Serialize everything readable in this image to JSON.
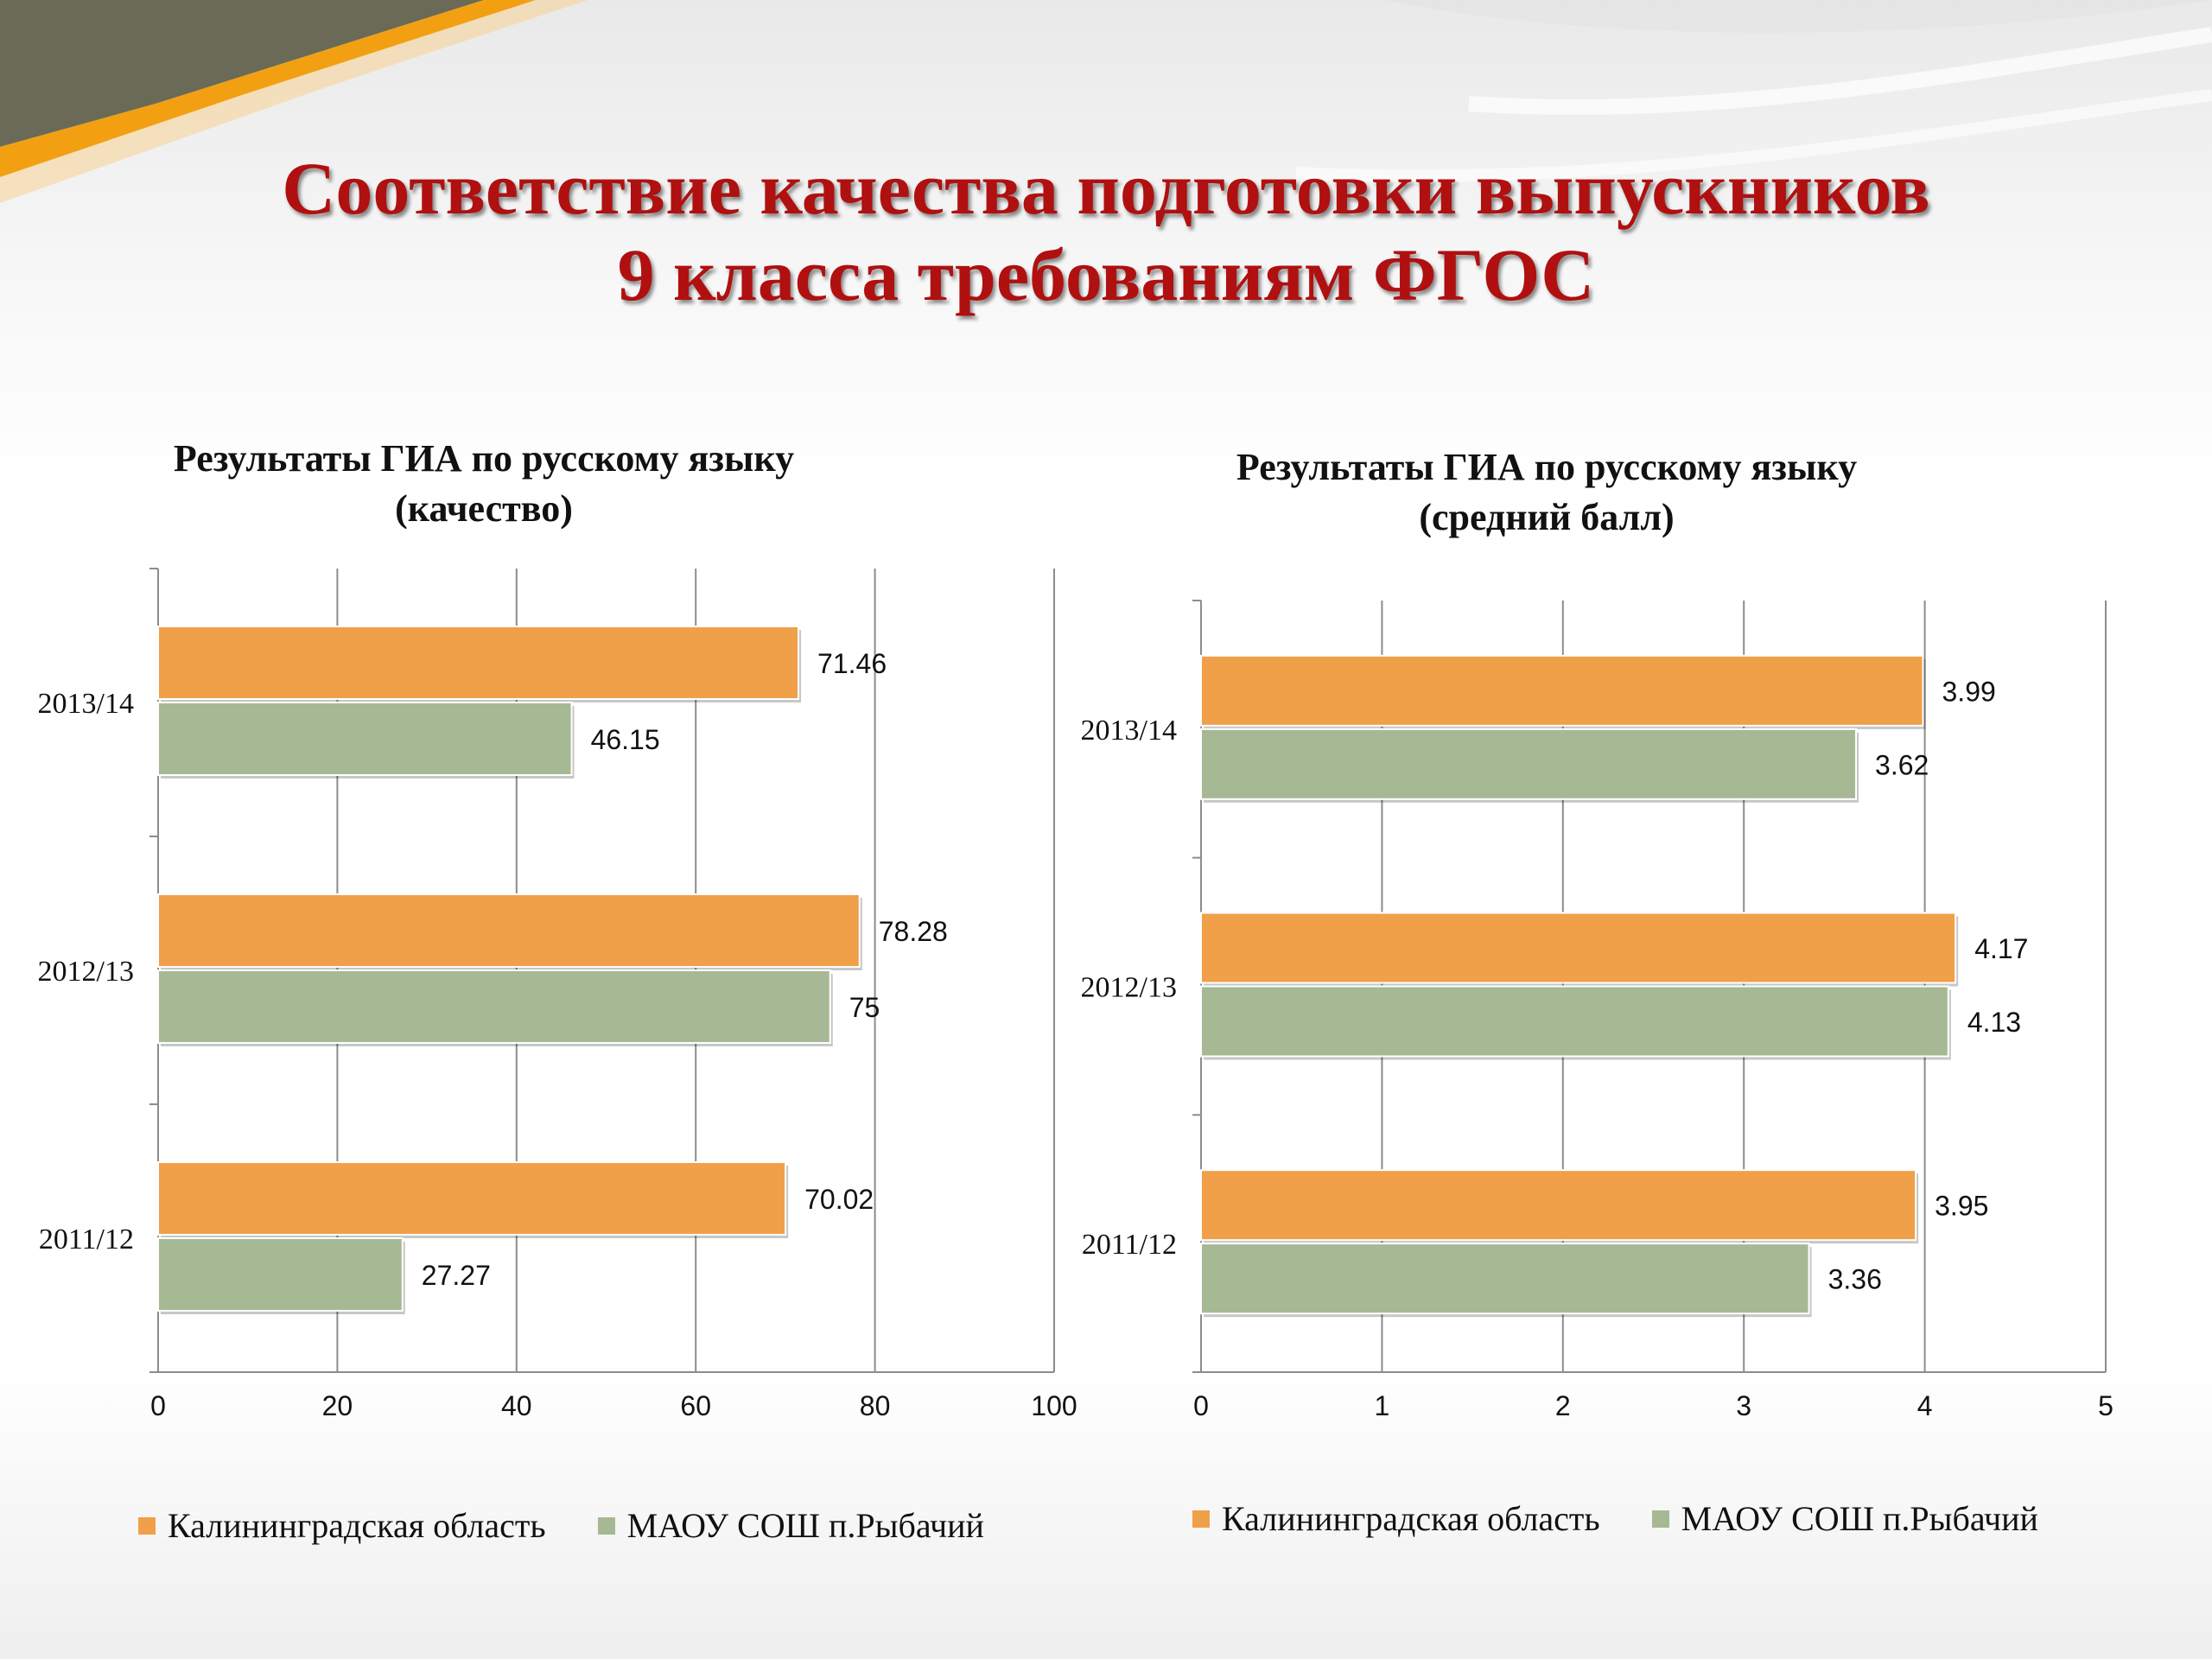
{
  "slide": {
    "title_line1": "Соответствие качества подготовки выпускников",
    "title_line2": "9 класса требованиям ФГОС"
  },
  "colors": {
    "orange": "#f0a048",
    "green": "#a6b994",
    "title_red": "#b01010",
    "grid": "#8c8c8c"
  },
  "chart_data": [
    {
      "type": "bar",
      "orientation": "horizontal",
      "title_line1": "Результаты ГИА по русскому языку",
      "title_line2": "(качество)",
      "categories": [
        "2013/14",
        "2012/13",
        "2011/12"
      ],
      "series": [
        {
          "name": "Калининградская область",
          "values": [
            71.46,
            78.28,
            70.02
          ],
          "color": "#f0a048"
        },
        {
          "name": "МАОУ СОШ п.Рыбачий",
          "values": [
            46.15,
            75,
            27.27
          ],
          "color": "#a6b994"
        }
      ],
      "xlim": [
        0,
        100
      ],
      "xticks": [
        0,
        20,
        40,
        60,
        80,
        100
      ],
      "value_labels": [
        "71.46",
        "46.15",
        "78.28",
        "75",
        "70.02",
        "27.27"
      ],
      "grid": true,
      "legend": "bottom"
    },
    {
      "type": "bar",
      "orientation": "horizontal",
      "title_line1": "Результаты ГИА по русскому языку",
      "title_line2": "(средний балл)",
      "categories": [
        "2013/14",
        "2012/13",
        "2011/12"
      ],
      "series": [
        {
          "name": "Калининградская область",
          "values": [
            3.99,
            4.17,
            3.95
          ],
          "color": "#f0a048"
        },
        {
          "name": "МАОУ СОШ п.Рыбачий",
          "values": [
            3.62,
            4.13,
            3.36
          ],
          "color": "#a6b994"
        }
      ],
      "xlim": [
        0,
        5
      ],
      "xticks": [
        0,
        1,
        2,
        3,
        4,
        5
      ],
      "value_labels": [
        "3.99",
        "3.62",
        "4.17",
        "4.13",
        "3.95",
        "3.36"
      ],
      "grid": true,
      "legend": "bottom"
    }
  ]
}
